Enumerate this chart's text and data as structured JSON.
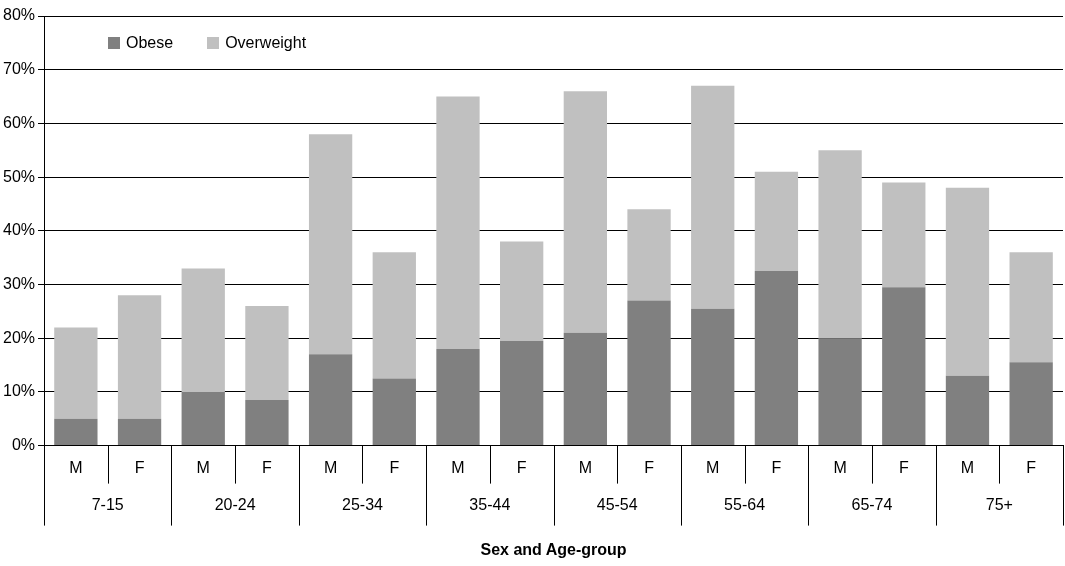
{
  "chart_data": {
    "type": "bar",
    "xlabel": "Sex and Age-group",
    "categories": [
      "M",
      "F",
      "M",
      "F",
      "M",
      "F",
      "M",
      "F",
      "M",
      "F",
      "M",
      "F",
      "M",
      "F",
      "M",
      "F"
    ],
    "annotations": [
      "7-15",
      "20-24",
      "25-34",
      "35-44",
      "45-54",
      "55-64",
      "65-74",
      "75+"
    ],
    "stacked": true,
    "series": [
      {
        "name": "Obese",
        "color": "#808080",
        "values": [
          5,
          5,
          10,
          8.5,
          17,
          12.5,
          18,
          19.5,
          21,
          27,
          25.5,
          32.5,
          20,
          29.5,
          13,
          15.5
        ]
      },
      {
        "name": "Overweight",
        "color": "#c0c0c0",
        "values": [
          17,
          23,
          23,
          17.5,
          41,
          23.5,
          47,
          18.5,
          45,
          17,
          41.5,
          18.5,
          35,
          19.5,
          35,
          20.5
        ]
      }
    ],
    "ylim": [
      0,
      80
    ],
    "yticks": [
      {
        "value": 0,
        "label": "0%"
      },
      {
        "value": 10,
        "label": "10%"
      },
      {
        "value": 20,
        "label": "20%"
      },
      {
        "value": 30,
        "label": "30%"
      },
      {
        "value": 40,
        "label": "40%"
      },
      {
        "value": 50,
        "label": "50%"
      },
      {
        "value": 60,
        "label": "60%"
      },
      {
        "value": 70,
        "label": "70%"
      },
      {
        "value": 80,
        "label": "80%"
      }
    ],
    "grid": "y",
    "legend": "top left"
  }
}
